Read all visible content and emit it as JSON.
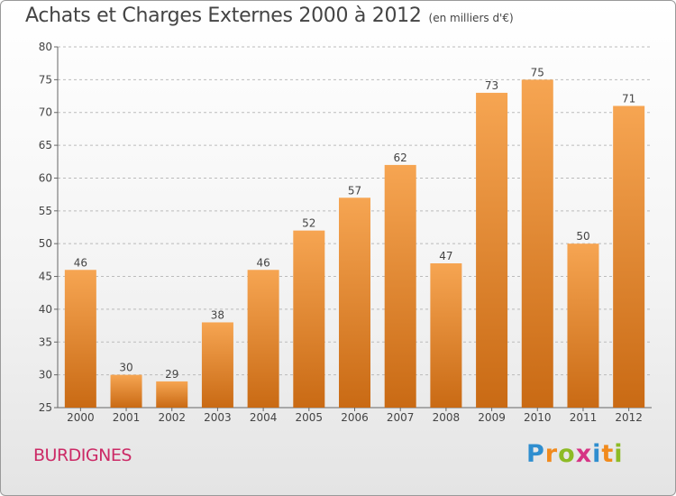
{
  "title": "Achats et Charges Externes 2000 à 2012",
  "unit": "(en milliers d'€)",
  "town": "BURDIGNES",
  "logo": {
    "letters": [
      "P",
      "r",
      "o",
      "x",
      "i",
      "t",
      "i"
    ],
    "colors": [
      "#2f8ecf",
      "#f18a1c",
      "#8dbb25",
      "#d63384",
      "#2f8ecf",
      "#f18a1c",
      "#8dbb25"
    ]
  },
  "colors": {
    "bar_top": "#f6a552",
    "bar_bottom": "#c96a14",
    "grid": "#bbbbbb",
    "axis_text": "#444444"
  },
  "chart_data": {
    "type": "bar",
    "title": "Achats et Charges Externes 2000 à 2012",
    "categories": [
      "2000",
      "2001",
      "2002",
      "2003",
      "2004",
      "2005",
      "2006",
      "2007",
      "2008",
      "2009",
      "2010",
      "2011",
      "2012"
    ],
    "values": [
      46,
      30,
      29,
      38,
      46,
      52,
      57,
      62,
      47,
      73,
      75,
      50,
      71
    ],
    "ylim": [
      25,
      80
    ],
    "yticks": [
      25,
      30,
      35,
      40,
      45,
      50,
      55,
      60,
      65,
      70,
      75,
      80
    ],
    "grid": true,
    "data_labels": true
  }
}
